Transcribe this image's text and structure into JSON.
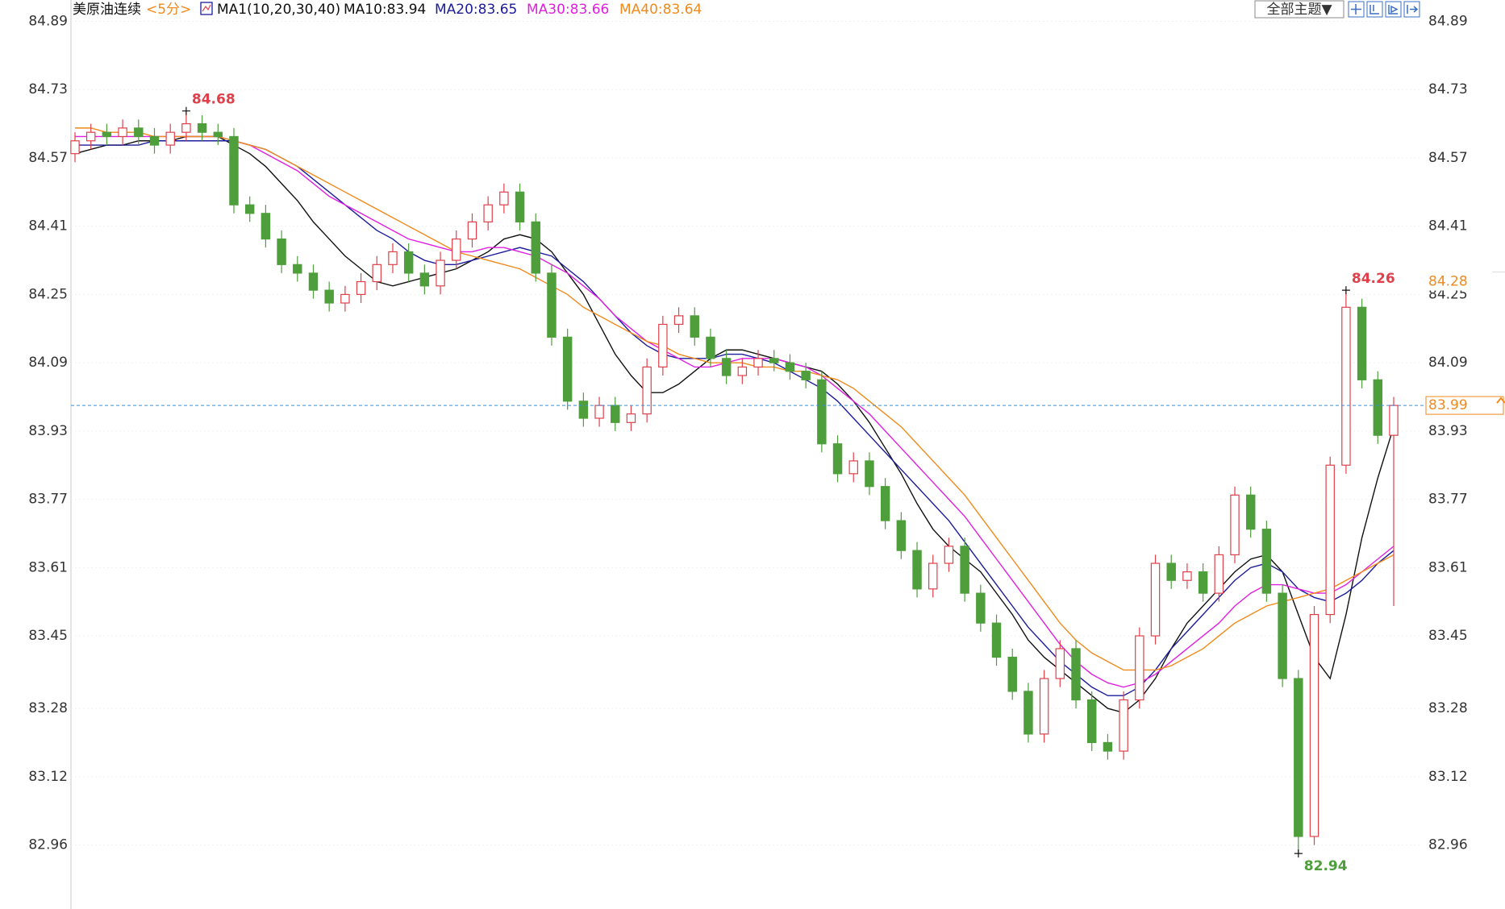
{
  "chart_data": {
    "type": "candlestick",
    "title": "美原油连续",
    "period": "<5分>",
    "indicator": "MA1(10,20,30,40)",
    "theme_button": "全部主题▼",
    "up_color": "#e0404a",
    "down_color": "#4e9e3c",
    "ylim": [
      82.81,
      84.94
    ],
    "yticks": [
      84.89,
      84.73,
      84.57,
      84.41,
      84.25,
      84.09,
      83.93,
      83.77,
      83.61,
      83.45,
      83.28,
      83.12,
      82.96
    ],
    "grid": true,
    "last_price": 83.99,
    "last_price_color": "#f08a1c",
    "ref_price": 84.28,
    "open": [
      84.58,
      84.61,
      84.63,
      84.62,
      84.64,
      84.62,
      84.6,
      84.63,
      84.65,
      84.63,
      84.62,
      84.46,
      84.44,
      84.38,
      84.32,
      84.3,
      84.26,
      84.23,
      84.25,
      84.28,
      84.32,
      84.35,
      84.3,
      84.27,
      84.33,
      84.38,
      84.42,
      84.46,
      84.49,
      84.42,
      84.3,
      84.15,
      84.0,
      83.96,
      83.99,
      83.95,
      83.97,
      84.08,
      84.18,
      84.2,
      84.15,
      84.1,
      84.06,
      84.08,
      84.1,
      84.09,
      84.07,
      84.05,
      83.9,
      83.83,
      83.86,
      83.8,
      83.72,
      83.65,
      83.56,
      83.62,
      83.66,
      83.55,
      83.48,
      83.4,
      83.32,
      83.22,
      83.35,
      83.42,
      83.3,
      83.2,
      83.18,
      83.3,
      83.45,
      83.62,
      83.58,
      83.6,
      83.55,
      83.64,
      83.78,
      83.7,
      83.55,
      83.35,
      82.98,
      83.5,
      83.85,
      84.22,
      84.05,
      83.92
    ],
    "high": [
      84.63,
      84.65,
      84.65,
      84.66,
      84.66,
      84.64,
      84.65,
      84.68,
      84.67,
      84.65,
      84.64,
      84.48,
      84.46,
      84.4,
      84.34,
      84.32,
      84.28,
      84.27,
      84.3,
      84.34,
      84.37,
      84.37,
      84.32,
      84.35,
      84.4,
      84.44,
      84.48,
      84.51,
      84.51,
      84.44,
      84.32,
      84.17,
      84.02,
      84.01,
      84.01,
      83.99,
      84.1,
      84.2,
      84.22,
      84.22,
      84.17,
      84.12,
      84.1,
      84.12,
      84.12,
      84.11,
      84.09,
      84.07,
      83.92,
      83.88,
      83.88,
      83.82,
      83.74,
      83.67,
      83.64,
      83.68,
      83.68,
      83.57,
      83.5,
      83.42,
      83.34,
      83.37,
      83.44,
      83.44,
      83.32,
      83.22,
      83.32,
      83.47,
      83.64,
      83.64,
      83.62,
      83.62,
      83.66,
      83.8,
      83.8,
      83.72,
      83.57,
      83.37,
      83.52,
      83.87,
      84.26,
      84.24,
      84.07,
      84.01
    ],
    "low": [
      84.56,
      84.59,
      84.6,
      84.6,
      84.6,
      84.58,
      84.58,
      84.61,
      84.61,
      84.6,
      84.44,
      84.42,
      84.36,
      84.3,
      84.28,
      84.24,
      84.21,
      84.21,
      84.23,
      84.26,
      84.3,
      84.28,
      84.25,
      84.25,
      84.31,
      84.36,
      84.4,
      84.44,
      84.4,
      84.28,
      84.13,
      83.98,
      83.94,
      83.94,
      83.93,
      83.93,
      83.95,
      84.06,
      84.16,
      84.13,
      84.08,
      84.04,
      84.04,
      84.06,
      84.07,
      84.05,
      84.03,
      83.88,
      83.81,
      83.81,
      83.78,
      83.7,
      83.63,
      83.54,
      83.54,
      83.6,
      83.53,
      83.46,
      83.38,
      83.3,
      83.2,
      83.2,
      83.33,
      83.28,
      83.18,
      83.16,
      83.16,
      83.28,
      83.43,
      83.56,
      83.56,
      83.53,
      83.53,
      83.62,
      83.68,
      83.53,
      83.33,
      82.94,
      82.96,
      83.48,
      83.83,
      84.03,
      83.9,
      83.52
    ],
    "close": [
      84.61,
      84.63,
      84.62,
      84.64,
      84.62,
      84.6,
      84.63,
      84.65,
      84.63,
      84.62,
      84.46,
      84.44,
      84.38,
      84.32,
      84.3,
      84.26,
      84.23,
      84.25,
      84.28,
      84.32,
      84.35,
      84.3,
      84.27,
      84.33,
      84.38,
      84.42,
      84.46,
      84.49,
      84.42,
      84.3,
      84.15,
      84.0,
      83.96,
      83.99,
      83.95,
      83.97,
      84.08,
      84.18,
      84.2,
      84.15,
      84.1,
      84.06,
      84.08,
      84.1,
      84.09,
      84.07,
      84.05,
      83.9,
      83.83,
      83.86,
      83.8,
      83.72,
      83.65,
      83.56,
      83.62,
      83.66,
      83.55,
      83.48,
      83.4,
      83.32,
      83.22,
      83.35,
      83.42,
      83.3,
      83.2,
      83.18,
      83.3,
      83.45,
      83.62,
      83.58,
      83.6,
      83.55,
      83.64,
      83.78,
      83.7,
      83.55,
      83.35,
      82.98,
      83.5,
      83.85,
      84.22,
      84.05,
      83.92,
      83.99
    ],
    "series": [
      {
        "name": "MA10",
        "legend": "MA10:83.94",
        "color": "#111111",
        "values": [
          84.58,
          84.59,
          84.6,
          84.6,
          84.61,
          84.61,
          84.61,
          84.62,
          84.62,
          84.62,
          84.6,
          84.58,
          84.55,
          84.51,
          84.47,
          84.42,
          84.38,
          84.34,
          84.31,
          84.28,
          84.27,
          84.28,
          84.29,
          84.3,
          84.31,
          84.33,
          84.35,
          84.38,
          84.39,
          84.38,
          84.35,
          84.3,
          84.25,
          84.18,
          84.11,
          84.06,
          84.02,
          84.02,
          84.04,
          84.07,
          84.1,
          84.12,
          84.12,
          84.11,
          84.1,
          84.09,
          84.08,
          84.07,
          84.04,
          84.0,
          83.95,
          83.89,
          83.83,
          83.76,
          83.7,
          83.66,
          83.63,
          83.6,
          83.55,
          83.5,
          83.44,
          83.4,
          83.37,
          83.34,
          83.31,
          83.28,
          83.27,
          83.3,
          83.35,
          83.42,
          83.48,
          83.52,
          83.56,
          83.6,
          83.63,
          83.64,
          83.6,
          83.5,
          83.4,
          83.35,
          83.5,
          83.68,
          83.82,
          83.94
        ]
      },
      {
        "name": "MA20",
        "legend": "MA20:83.65",
        "color": "#1c1c9c",
        "values": [
          84.6,
          84.6,
          84.6,
          84.6,
          84.6,
          84.61,
          84.61,
          84.61,
          84.61,
          84.61,
          84.61,
          84.6,
          84.59,
          84.57,
          84.55,
          84.52,
          84.49,
          84.46,
          84.43,
          84.4,
          84.38,
          84.35,
          84.33,
          84.32,
          84.32,
          84.33,
          84.34,
          84.35,
          84.36,
          84.35,
          84.34,
          84.31,
          84.28,
          84.24,
          84.2,
          84.16,
          84.13,
          84.11,
          84.1,
          84.1,
          84.1,
          84.11,
          84.11,
          84.1,
          84.09,
          84.07,
          84.05,
          84.03,
          84.0,
          83.96,
          83.92,
          83.88,
          83.84,
          83.8,
          83.76,
          83.72,
          83.67,
          83.62,
          83.57,
          83.52,
          83.47,
          83.43,
          83.39,
          83.36,
          83.33,
          83.31,
          83.31,
          83.33,
          83.37,
          83.42,
          83.46,
          83.5,
          83.54,
          83.58,
          83.61,
          83.62,
          83.6,
          83.56,
          83.54,
          83.53,
          83.55,
          83.58,
          83.62,
          83.65
        ]
      },
      {
        "name": "MA30",
        "legend": "MA30:83.66",
        "color": "#e020e0",
        "values": [
          84.62,
          84.62,
          84.62,
          84.62,
          84.62,
          84.62,
          84.62,
          84.62,
          84.62,
          84.62,
          84.61,
          84.6,
          84.58,
          84.56,
          84.54,
          84.51,
          84.48,
          84.46,
          84.44,
          84.42,
          84.4,
          84.38,
          84.37,
          84.36,
          84.35,
          84.35,
          84.36,
          84.36,
          84.35,
          84.34,
          84.32,
          84.3,
          84.27,
          84.24,
          84.2,
          84.17,
          84.14,
          84.12,
          84.1,
          84.08,
          84.08,
          84.09,
          84.1,
          84.1,
          84.1,
          84.09,
          84.08,
          84.06,
          84.03,
          84.0,
          83.97,
          83.93,
          83.89,
          83.85,
          83.81,
          83.77,
          83.73,
          83.68,
          83.63,
          83.58,
          83.53,
          83.48,
          83.43,
          83.39,
          83.36,
          83.34,
          83.33,
          83.34,
          83.36,
          83.39,
          83.42,
          83.45,
          83.48,
          83.52,
          83.55,
          83.57,
          83.57,
          83.56,
          83.55,
          83.55,
          83.57,
          83.6,
          83.63,
          83.66
        ]
      },
      {
        "name": "MA40",
        "legend": "MA40:83.64",
        "color": "#f08a1c",
        "values": [
          84.64,
          84.64,
          84.63,
          84.63,
          84.63,
          84.62,
          84.62,
          84.62,
          84.62,
          84.62,
          84.61,
          84.6,
          84.59,
          84.57,
          84.55,
          84.53,
          84.51,
          84.49,
          84.47,
          84.45,
          84.43,
          84.41,
          84.39,
          84.37,
          84.35,
          84.34,
          84.33,
          84.32,
          84.31,
          84.29,
          84.27,
          84.25,
          84.22,
          84.2,
          84.18,
          84.16,
          84.14,
          84.13,
          84.11,
          84.1,
          84.09,
          84.09,
          84.09,
          84.08,
          84.08,
          84.07,
          84.07,
          84.06,
          84.05,
          84.03,
          84.0,
          83.97,
          83.94,
          83.9,
          83.86,
          83.82,
          83.78,
          83.73,
          83.68,
          83.63,
          83.58,
          83.53,
          83.48,
          83.44,
          83.41,
          83.39,
          83.37,
          83.37,
          83.37,
          83.38,
          83.4,
          83.42,
          83.45,
          83.48,
          83.5,
          83.52,
          83.53,
          83.54,
          83.55,
          83.56,
          83.58,
          83.6,
          83.62,
          83.64
        ]
      }
    ]
  }
}
